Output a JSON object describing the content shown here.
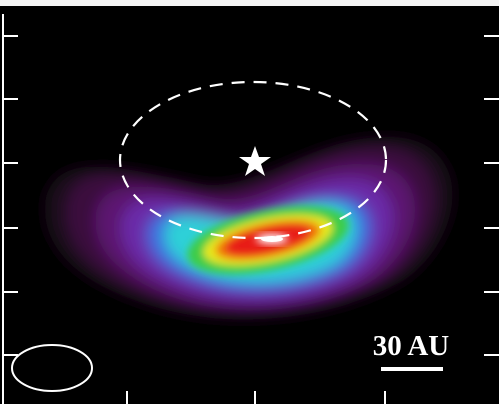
{
  "scale_bar": {
    "label": "30 AU"
  }
}
